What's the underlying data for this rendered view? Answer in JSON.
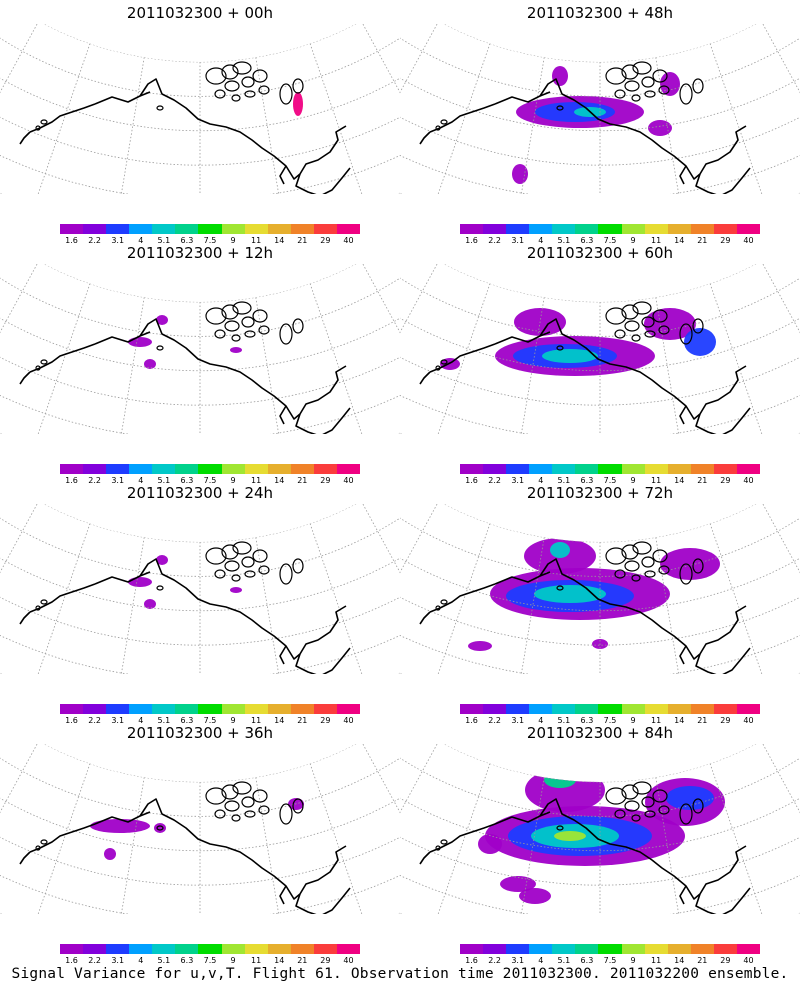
{
  "panels": [
    {
      "title": "2011032300 + 00h",
      "col": 0,
      "row": 0,
      "level": 0
    },
    {
      "title": "2011032300 + 48h",
      "col": 1,
      "row": 0,
      "level": 3
    },
    {
      "title": "2011032300 + 12h",
      "col": 0,
      "row": 1,
      "level": 1
    },
    {
      "title": "2011032300 + 60h",
      "col": 1,
      "row": 1,
      "level": 4
    },
    {
      "title": "2011032300 + 24h",
      "col": 0,
      "row": 2,
      "level": 1
    },
    {
      "title": "2011032300 + 72h",
      "col": 1,
      "row": 2,
      "level": 5
    },
    {
      "title": "2011032300 + 36h",
      "col": 0,
      "row": 3,
      "level": 2
    },
    {
      "title": "2011032300 + 84h",
      "col": 1,
      "row": 3,
      "level": 6
    }
  ],
  "colorbar": {
    "labels": [
      "1.6",
      "2.2",
      "3.1",
      "4",
      "5.1",
      "6.3",
      "7.5",
      "9",
      "11",
      "14",
      "21",
      "29",
      "40"
    ],
    "colors": [
      "#a000c8",
      "#8200dc",
      "#1e3cff",
      "#00a0ff",
      "#00c8c8",
      "#00d28c",
      "#00dc00",
      "#a0e632",
      "#e6dc32",
      "#e6af2d",
      "#f08228",
      "#fa3c3c",
      "#f00082"
    ]
  },
  "caption": "Signal Variance for u,v,T. Flight 61. Observation time 2011032300. 2011032200 ensemble."
}
